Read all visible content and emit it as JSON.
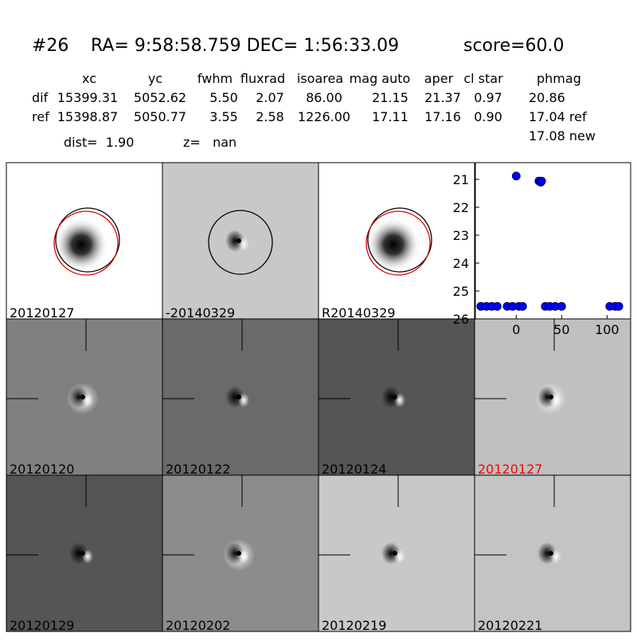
{
  "header": {
    "id": "#26",
    "coords": "RA= 9:58:58.759 DEC= 1:56:33.09",
    "score": "score=60.0"
  },
  "table": {
    "columns": [
      "xc",
      "yc",
      "fwhm",
      "fluxrad",
      "isoarea",
      "mag auto",
      "aper",
      "cl star",
      "phmag"
    ],
    "rows": [
      [
        "dif",
        "15399.31",
        "5052.62",
        "5.50",
        "2.07",
        "86.00",
        "21.15",
        "21.37",
        "0.97",
        "20.86"
      ],
      [
        "ref",
        "15398.87",
        "5050.77",
        "3.55",
        "2.58",
        "1226.00",
        "17.11",
        "17.16",
        "0.90",
        "17.04 ref"
      ]
    ],
    "extra": "17.08 new"
  },
  "dist": "dist=  1.90",
  "z": "z=   nan",
  "panels": [
    "20120127",
    "-20140329",
    "R20140329",
    "20120120",
    "20120122",
    "20120124",
    "20120127",
    "20120129",
    "20120202",
    "20120219",
    "20120221"
  ],
  "chart_data": {
    "type": "scatter",
    "x": [
      -39,
      -33,
      -27,
      -21,
      -10,
      -4,
      3,
      7,
      0,
      25,
      27,
      28,
      32,
      37,
      43,
      50,
      103,
      109,
      113
    ],
    "y": [
      25.55,
      25.55,
      25.55,
      25.55,
      25.55,
      25.55,
      25.55,
      25.55,
      20.88,
      21.06,
      21.1,
      21.06,
      25.55,
      25.55,
      25.55,
      25.55,
      25.55,
      25.55,
      25.55
    ],
    "color": "#0000ff",
    "xlim": [
      -45,
      126
    ],
    "ylim": [
      20.4,
      26.0
    ],
    "invert_y": true,
    "xticks": [
      0,
      50,
      100
    ],
    "yticks": [
      21,
      22,
      23,
      24,
      25,
      26
    ]
  }
}
